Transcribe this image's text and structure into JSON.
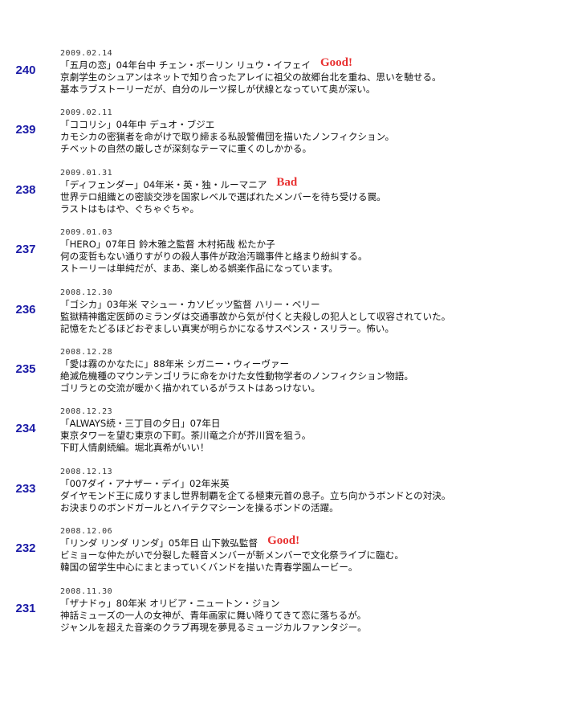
{
  "entries": [
    {
      "number": 240,
      "date": "2009.02.14",
      "title": "「五月の恋」04年台中 チェン・ボーリン リュウ・イフェイ",
      "rating": "Good!",
      "lines": [
        "京劇学生のシュアンはネットで知り合ったアレイに祖父の故郷台北を重ね、思いを馳せる。",
        "基本ラブストーリーだが、自分のルーツ探しが伏線となっていて奥が深い。"
      ]
    },
    {
      "number": 239,
      "date": "2009.02.11",
      "title": "「ココリシ」04年中 デュオ・ブジエ",
      "lines": [
        "カモシカの密猟者を命がけで取り締まる私設警備団を描いたノンフィクション。",
        "チベットの自然の厳しさが深刻なテーマに重くのしかかる。"
      ]
    },
    {
      "number": 238,
      "date": "2009.01.31",
      "title": "「ディフェンダー」04年米・英・独・ルーマニア",
      "rating": "Bad",
      "lines": [
        "世界テロ組織との密談交渉を国家レベルで選ばれたメンバーを待ち受ける罠。",
        "ラストはもはや、ぐちゃぐちゃ。"
      ]
    },
    {
      "number": 237,
      "date": "2009.01.03",
      "title": "「HERO」07年日 鈴木雅之監督 木村拓哉 松たか子",
      "lines": [
        "何の変哲もない通りすがりの殺人事件が政治汚職事件と絡まり紛糾する。",
        "ストーリーは単純だが、まあ、楽しめる娯楽作品になっています。"
      ]
    },
    {
      "number": 236,
      "date": "2008.12.30",
      "title": "「ゴシカ」03年米 マシュー・カソビッツ監督 ハリー・ベリー",
      "lines": [
        "監獄精神鑑定医師のミランダは交通事故から気が付くと夫殺しの犯人として収容されていた。",
        "記憶をたどるほどおぞましい真実が明らかになるサスペンス・スリラー。怖い。"
      ]
    },
    {
      "number": 235,
      "date": "2008.12.28",
      "title": "「愛は霧のかなたに」88年米 シガニー・ウィーヴァー",
      "lines": [
        "絶滅危機種のマウンテンゴリラに命をかけた女性動物学者のノンフィクション物語。",
        "ゴリラとの交流が暖かく描かれているがラストはあっけない。"
      ]
    },
    {
      "number": 234,
      "date": "2008.12.23",
      "title": "「ALWAYS続・三丁目の夕日」07年日",
      "lines": [
        "東京タワーを望む東京の下町。茶川竜之介が芥川賞を狙う。",
        "下町人情劇続編。堀北真希がいい！"
      ]
    },
    {
      "number": 233,
      "date": "2008.12.13",
      "title": "「007ダイ・アナザー・デイ」02年米英",
      "lines": [
        "ダイヤモンド王に成りすまし世界制覇を企てる極東元首の息子。立ち向かうボンドとの対決。",
        "お決まりのボンドガールとハイテクマシーンを操るボンドの活躍。"
      ]
    },
    {
      "number": 232,
      "date": "2008.12.06",
      "title": "「リンダ リンダ リンダ」05年日 山下敦弘監督",
      "rating": "Good!",
      "lines": [
        "ビミョーな仲たがいで分裂した軽音メンバーが新メンバーで文化祭ライブに臨む。",
        "韓国の留学生中心にまとまっていくバンドを描いた青春学園ムービー。"
      ]
    },
    {
      "number": 231,
      "date": "2008.11.30",
      "title": "「ザナドゥ」80年米 オリビア・ニュートン・ジョン",
      "lines": [
        "神話ミューズの一人の女神が、青年画家に舞い降りてきて恋に落ちるが。",
        "ジャンルを超えた音楽のクラブ再現を夢見るミュージカルファンタジー。"
      ]
    }
  ]
}
